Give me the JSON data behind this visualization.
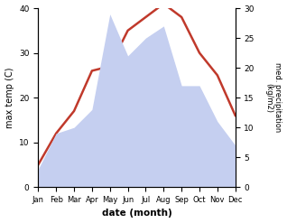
{
  "months": [
    "Jan",
    "Feb",
    "Mar",
    "Apr",
    "May",
    "Jun",
    "Jul",
    "Aug",
    "Sep",
    "Oct",
    "Nov",
    "Dec"
  ],
  "temperature": [
    5,
    12,
    17,
    26,
    27,
    35,
    38,
    41,
    38,
    30,
    25,
    16
  ],
  "precipitation": [
    3,
    9,
    10,
    13,
    29,
    22,
    25,
    27,
    17,
    17,
    11,
    7
  ],
  "temp_color": "#c0392b",
  "precip_fill_color": "#c5cff0",
  "xlabel": "date (month)",
  "ylabel_left": "max temp (C)",
  "ylabel_right": "med. precipitation\n(kg/m2)",
  "ylim_left": [
    0,
    40
  ],
  "ylim_right": [
    0,
    30
  ],
  "yticks_left": [
    0,
    10,
    20,
    30,
    40
  ],
  "yticks_right": [
    0,
    5,
    10,
    15,
    20,
    25,
    30
  ],
  "background_color": "#ffffff"
}
